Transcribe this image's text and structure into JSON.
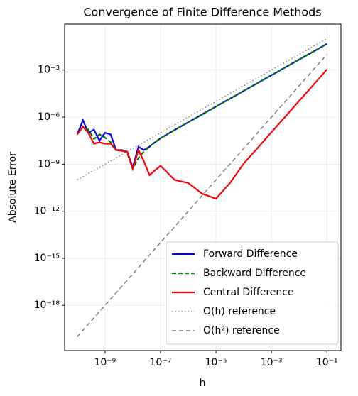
{
  "chart_data": {
    "type": "line",
    "title": "Convergence of Finite Difference Methods",
    "xlabel": "h",
    "ylabel": "Absolute Error",
    "xscale": "log",
    "yscale": "log",
    "grid": true,
    "legend": "lower right",
    "xlim": [
      3.5e-11,
      0.32
    ],
    "ylim": [
      1.3e-21,
      0.85
    ],
    "xticks": [
      {
        "value": 1e-09,
        "label": "10⁻⁹"
      },
      {
        "value": 1e-07,
        "label": "10⁻⁷"
      },
      {
        "value": 1e-05,
        "label": "10⁻⁵"
      },
      {
        "value": 0.001,
        "label": "10⁻³"
      },
      {
        "value": 0.1,
        "label": "10⁻¹"
      }
    ],
    "yticks": [
      {
        "value": 1e-18,
        "label": "10⁻¹⁸"
      },
      {
        "value": 1e-15,
        "label": "10⁻¹⁵"
      },
      {
        "value": 1e-12,
        "label": "10⁻¹²"
      },
      {
        "value": 1e-09,
        "label": "10⁻⁹"
      },
      {
        "value": 1e-06,
        "label": "10⁻⁶"
      },
      {
        "value": 0.001,
        "label": "10⁻³"
      }
    ],
    "series": [
      {
        "name": "Forward Difference",
        "color": "#0000ff",
        "style": "solid",
        "x": [
          1e-10,
          1.6e-10,
          2.5e-10,
          4e-10,
          6.3e-10,
          1e-09,
          1.6e-09,
          2.5e-09,
          4e-09,
          6.3e-09,
          1e-08,
          1.6e-08,
          2.5e-08,
          4e-08,
          6.3e-08,
          1e-07,
          3.2e-07,
          1e-06,
          3.2e-06,
          1e-05,
          3.2e-05,
          0.0001,
          0.00032,
          0.001,
          0.0032,
          0.01,
          0.032,
          0.1
        ],
        "values": [
          7.9e-08,
          6.3e-07,
          1e-07,
          1.6e-07,
          3.2e-08,
          1e-07,
          7.9e-08,
          7.9e-09,
          7.9e-09,
          6.3e-09,
          6.3e-10,
          1.3e-08,
          7.9e-09,
          1.3e-08,
          2.5e-08,
          4.5e-08,
          1.5e-07,
          4.7e-07,
          1.5e-06,
          4.7e-06,
          1.5e-05,
          4.7e-05,
          0.00015,
          0.00047,
          0.0015,
          0.0047,
          0.015,
          0.047
        ]
      },
      {
        "name": "Backward Difference",
        "color": "#008000",
        "style": "dashed",
        "x": [
          1e-10,
          1.6e-10,
          2.5e-10,
          4e-10,
          6.3e-10,
          1e-09,
          1.6e-09,
          2.5e-09,
          4e-09,
          6.3e-09,
          1e-08,
          1.6e-08,
          2.5e-08,
          4e-08,
          6.3e-08,
          1e-07,
          3.2e-07,
          1e-06,
          3.2e-06,
          1e-05,
          3.2e-05,
          0.0001,
          0.00032,
          0.001,
          0.0032,
          0.01,
          0.032,
          0.1
        ],
        "values": [
          7.9e-08,
          2.5e-07,
          1.6e-07,
          4e-08,
          7.9e-08,
          5e-08,
          2.5e-08,
          7.9e-09,
          7.9e-09,
          5e-09,
          5e-10,
          2.5e-09,
          6.3e-09,
          1.3e-08,
          2.5e-08,
          4.5e-08,
          1.5e-07,
          4.7e-07,
          1.5e-06,
          4.7e-06,
          1.5e-05,
          4.7e-05,
          0.00015,
          0.00047,
          0.0015,
          0.0047,
          0.015,
          0.047
        ]
      },
      {
        "name": "Central Difference",
        "color": "#ff0000",
        "style": "solid",
        "x": [
          1e-10,
          1.6e-10,
          2.5e-10,
          4e-10,
          6.3e-10,
          1e-09,
          1.6e-09,
          2.5e-09,
          4e-09,
          6.3e-09,
          1e-08,
          1.6e-08,
          2.5e-08,
          4e-08,
          6.3e-08,
          1e-07,
          3.2e-07,
          1e-06,
          3.2e-06,
          1e-05,
          3.2e-05,
          0.0001,
          0.00032,
          0.001,
          0.0032,
          0.01,
          0.032,
          0.1
        ],
        "values": [
          7.9e-08,
          2.5e-07,
          1e-07,
          2e-08,
          2.5e-08,
          2e-08,
          2e-08,
          7.9e-09,
          7.1e-09,
          6.3e-09,
          5e-10,
          7.9e-09,
          1.6e-09,
          2e-10,
          4e-10,
          7.9e-10,
          1e-10,
          6.3e-11,
          1.3e-11,
          6.3e-12,
          6.3e-11,
          1.1e-09,
          1.1e-08,
          1.1e-07,
          1.1e-06,
          1.1e-05,
          0.00011,
          0.0011
        ]
      },
      {
        "name": "O(h) reference",
        "color": "#808080",
        "style": "dotted",
        "x": [
          1e-10,
          0.1
        ],
        "values": [
          1e-10,
          0.1
        ]
      },
      {
        "name": "O(h²) reference",
        "color": "#808080",
        "style": "dashed",
        "x": [
          1e-10,
          0.1
        ],
        "values": [
          1e-20,
          0.01
        ]
      }
    ]
  }
}
